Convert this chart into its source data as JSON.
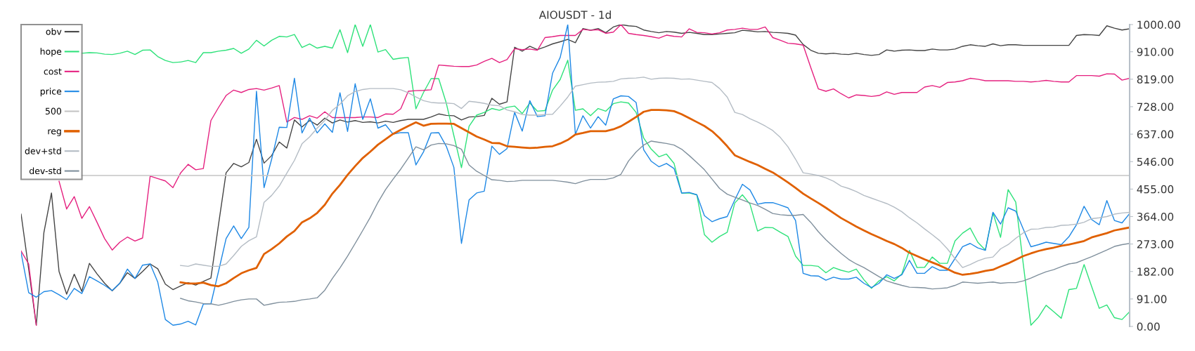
{
  "chart_data": {
    "type": "line",
    "title": "AIOUSDT - 1d",
    "categories": [
      null,
      null,
      null,
      null,
      null,
      null,
      null,
      null,
      null,
      null,
      null,
      null,
      null,
      null,
      null,
      null,
      null,
      null,
      null,
      null,
      null,
      null,
      null,
      null,
      null,
      null,
      null,
      null,
      null,
      null,
      null,
      null,
      null,
      null,
      null,
      null,
      null,
      null,
      null,
      null,
      null,
      null,
      null,
      null,
      null,
      null,
      null,
      null,
      null,
      null,
      null,
      null,
      null,
      null,
      null,
      null,
      null,
      null,
      null,
      null,
      null,
      null,
      null,
      null,
      null,
      null,
      null,
      null,
      null,
      null,
      null,
      null,
      null,
      null,
      null,
      null,
      null,
      null,
      null,
      null,
      null,
      null,
      null,
      null,
      null,
      null,
      null,
      null,
      null,
      null,
      null,
      null,
      null,
      null,
      null,
      null,
      null,
      null,
      null,
      null,
      null,
      null,
      null,
      null,
      null,
      null,
      null,
      null,
      null,
      null,
      null,
      null,
      null,
      null,
      null,
      null,
      null,
      null,
      null,
      null,
      null,
      null,
      null,
      null,
      null,
      null,
      null,
      null,
      null,
      null,
      null,
      null,
      null,
      null,
      null,
      null,
      null,
      null,
      null,
      null,
      null,
      null,
      null,
      null,
      null,
      null,
      null
    ],
    "series": [
      {
        "name": "obv",
        "color": "#444444",
        "values": [
          372,
          190,
          4,
          310,
          442,
          182,
          107,
          173,
          116,
          209,
          174,
          143,
          118,
          143,
          178,
          159,
          182,
          207,
          191,
          140,
          122,
          134,
          145,
          137,
          149,
          160,
          337,
          509,
          540,
          529,
          543,
          620,
          541,
          566,
          611,
          591,
          684,
          661,
          682,
          667,
          690,
          674,
          684,
          677,
          682,
          676,
          678,
          674,
          680,
          676,
          682,
          686,
          686,
          686,
          694,
          704,
          699,
          698,
          684,
          694,
          695,
          699,
          756,
          736,
          744,
          925,
          912,
          928,
          917,
          926,
          936,
          943,
          951,
          940,
          987,
          981,
          987,
          973,
          992,
          1000,
          996,
          994,
          982,
          977,
          973,
          977,
          975,
          971,
          974,
          971,
          967,
          967,
          969,
          971,
          973,
          981,
          979,
          976,
          977,
          974,
          973,
          971,
          965,
          934,
          915,
          905,
          903,
          905,
          902,
          901,
          905,
          901,
          898,
          901,
          916,
          912,
          915,
          916,
          914,
          914,
          919,
          916,
          916,
          919,
          928,
          933,
          930,
          928,
          936,
          930,
          933,
          933,
          931,
          931,
          931,
          931,
          931,
          931,
          931,
          964,
          967,
          966,
          964,
          996,
          988,
          982,
          986
        ]
      },
      {
        "name": "hope",
        "color": "#2ee27a",
        "values": [
          null,
          null,
          null,
          null,
          null,
          null,
          null,
          null,
          905,
          907,
          906,
          902,
          901,
          905,
          912,
          901,
          915,
          916,
          894,
          881,
          874,
          876,
          881,
          874,
          907,
          907,
          912,
          915,
          921,
          905,
          919,
          948,
          929,
          948,
          961,
          959,
          967,
          924,
          936,
          922,
          928,
          922,
          983,
          907,
          1000,
          928,
          1000,
          909,
          917,
          885,
          889,
          891,
          721,
          775,
          821,
          821,
          740,
          632,
          526,
          663,
          700,
          709,
          722,
          716,
          726,
          730,
          705,
          740,
          713,
          715,
          783,
          818,
          882,
          716,
          721,
          698,
          722,
          713,
          738,
          744,
          740,
          709,
          624,
          587,
          562,
          571,
          540,
          442,
          442,
          436,
          304,
          279,
          298,
          312,
          409,
          436,
          405,
          316,
          328,
          327,
          312,
          298,
          233,
          202,
          202,
          199,
          178,
          195,
          186,
          180,
          190,
          155,
          126,
          151,
          165,
          151,
          174,
          252,
          195,
          196,
          230,
          209,
          209,
          283,
          309,
          326,
          279,
          253,
          376,
          295,
          453,
          412,
          205,
          4,
          31,
          70,
          49,
          27,
          122,
          126,
          205,
          132,
          60,
          71,
          29,
          23,
          49
        ]
      },
      {
        "name": "cost",
        "color": "#e5207f",
        "values": [
          250,
          207,
          4,
          null,
          null,
          481,
          389,
          430,
          358,
          397,
          345,
          291,
          253,
          279,
          296,
          283,
          293,
          498,
          490,
          482,
          460,
          508,
          537,
          519,
          523,
          682,
          725,
          765,
          783,
          775,
          785,
          788,
          783,
          790,
          798,
          677,
          692,
          686,
          698,
          690,
          711,
          692,
          692,
          692,
          692,
          694,
          694,
          692,
          704,
          703,
          721,
          779,
          781,
          782,
          784,
          866,
          864,
          862,
          861,
          861,
          866,
          878,
          888,
          874,
          884,
          920,
          917,
          919,
          915,
          957,
          960,
          964,
          964,
          964,
          984,
          981,
          983,
          971,
          975,
          1000,
          971,
          967,
          964,
          960,
          955,
          965,
          961,
          959,
          986,
          974,
          973,
          969,
          973,
          982,
          984,
          988,
          984,
          984,
          992,
          957,
          948,
          938,
          936,
          932,
          858,
          787,
          779,
          787,
          771,
          757,
          767,
          765,
          762,
          765,
          777,
          769,
          775,
          775,
          775,
          793,
          798,
          792,
          808,
          810,
          814,
          822,
          819,
          814,
          814,
          814,
          814,
          812,
          812,
          810,
          812,
          815,
          812,
          810,
          810,
          831,
          831,
          831,
          829,
          837,
          836,
          816,
          822
        ]
      },
      {
        "name": "price",
        "color": "#1e88e5",
        "values": [
          244,
          112,
          97,
          115,
          119,
          105,
          89,
          126,
          109,
          165,
          151,
          136,
          119,
          143,
          190,
          159,
          203,
          207,
          147,
          23,
          4,
          8,
          17,
          5,
          74,
          75,
          182,
          291,
          333,
          291,
          328,
          779,
          460,
          554,
          660,
          659,
          822,
          641,
          690,
          641,
          671,
          643,
          774,
          646,
          804,
          686,
          754,
          657,
          668,
          637,
          642,
          642,
          535,
          578,
          641,
          642,
          597,
          527,
          275,
          419,
          442,
          448,
          597,
          570,
          589,
          709,
          647,
          748,
          695,
          698,
          839,
          891,
          1000,
          636,
          698,
          657,
          695,
          667,
          754,
          764,
          762,
          742,
          585,
          547,
          529,
          540,
          523,
          442,
          444,
          436,
          367,
          347,
          357,
          364,
          419,
          471,
          452,
          405,
          410,
          410,
          402,
          393,
          351,
          176,
          168,
          167,
          153,
          163,
          157,
          157,
          163,
          143,
          129,
          143,
          171,
          159,
          171,
          219,
          176,
          176,
          198,
          186,
          186,
          225,
          264,
          275,
          260,
          252,
          378,
          339,
          393,
          382,
          322,
          264,
          271,
          279,
          275,
          271,
          297,
          337,
          398,
          354,
          337,
          417,
          351,
          343,
          374
        ]
      },
      {
        "name": "500",
        "color": "#c4c4c4",
        "values": [
          null,
          null,
          null,
          null,
          null,
          null,
          null,
          null,
          500,
          500,
          500,
          500,
          500,
          500,
          500,
          500,
          500,
          500,
          500,
          500,
          500,
          500,
          500,
          500,
          500,
          500,
          500,
          500,
          500,
          500,
          500,
          500,
          500,
          500,
          500,
          500,
          500,
          500,
          500,
          500,
          500,
          500,
          500,
          500,
          500,
          500,
          500,
          500,
          500,
          500,
          500,
          500,
          500,
          500,
          500,
          500,
          500,
          500,
          500,
          500,
          500,
          500,
          500,
          500,
          500,
          500,
          500,
          500,
          500,
          500,
          500,
          500,
          500,
          500,
          500,
          500,
          500,
          500,
          500,
          500,
          500,
          500,
          500,
          500,
          500,
          500,
          500,
          500,
          500,
          500,
          500,
          500,
          500,
          500,
          500,
          500,
          500,
          500,
          500,
          500,
          500,
          500,
          500,
          500,
          500,
          500,
          500,
          500,
          500,
          500,
          500,
          500,
          500,
          500,
          500,
          500,
          500,
          500,
          500,
          500,
          500,
          500,
          500,
          500,
          500,
          500,
          500,
          500,
          500,
          500,
          500,
          500,
          500,
          500,
          500,
          500,
          500,
          500,
          500,
          500,
          500,
          500,
          500,
          500,
          500,
          500,
          500
        ]
      },
      {
        "name": "reg",
        "color": "#e06000",
        "values": [
          null,
          null,
          null,
          null,
          null,
          null,
          null,
          null,
          null,
          null,
          null,
          null,
          null,
          null,
          null,
          null,
          null,
          null,
          null,
          null,
          null,
          146,
          142,
          142,
          145,
          137,
          133,
          143,
          160,
          176,
          186,
          194,
          240,
          256,
          275,
          298,
          316,
          345,
          358,
          376,
          403,
          440,
          469,
          502,
          531,
          558,
          579,
          602,
          620,
          638,
          651,
          664,
          676,
          665,
          671,
          672,
          672,
          671,
          657,
          643,
          629,
          619,
          608,
          607,
          597,
          595,
          593,
          591,
          592,
          595,
          597,
          606,
          618,
          636,
          641,
          647,
          647,
          647,
          653,
          663,
          678,
          694,
          711,
          717,
          717,
          716,
          713,
          703,
          690,
          677,
          664,
          647,
          624,
          597,
          567,
          556,
          545,
          535,
          522,
          510,
          494,
          477,
          459,
          440,
          424,
          409,
          393,
          376,
          359,
          345,
          331,
          318,
          306,
          295,
          283,
          273,
          260,
          244,
          233,
          222,
          212,
          202,
          190,
          178,
          171,
          174,
          178,
          184,
          188,
          199,
          209,
          221,
          233,
          242,
          250,
          256,
          261,
          267,
          271,
          277,
          283,
          295,
          302,
          309,
          318,
          323,
          328
        ]
      },
      {
        "name": "dev+std",
        "color": "#b4bcc4",
        "values": [
          null,
          null,
          null,
          null,
          null,
          null,
          null,
          null,
          null,
          null,
          null,
          null,
          null,
          null,
          null,
          null,
          null,
          null,
          null,
          null,
          null,
          202,
          199,
          207,
          203,
          199,
          199,
          207,
          235,
          265,
          284,
          297,
          411,
          434,
          465,
          508,
          550,
          605,
          628,
          657,
          682,
          716,
          736,
          764,
          778,
          785,
          788,
          788,
          788,
          788,
          784,
          774,
          760,
          748,
          742,
          740,
          740,
          738,
          722,
          746,
          743,
          739,
          733,
          731,
          717,
          711,
          702,
          700,
          700,
          702,
          703,
          730,
          760,
          796,
          801,
          806,
          809,
          810,
          812,
          820,
          822,
          823,
          826,
          819,
          822,
          823,
          822,
          819,
          820,
          816,
          812,
          808,
          788,
          760,
          709,
          702,
          688,
          677,
          664,
          649,
          626,
          595,
          554,
          509,
          505,
          500,
          492,
          481,
          465,
          457,
          447,
          434,
          425,
          416,
          407,
          395,
          380,
          360,
          343,
          323,
          304,
          284,
          257,
          225,
          195,
          205,
          217,
          226,
          230,
          257,
          271,
          292,
          310,
          322,
          323,
          328,
          329,
          335,
          336,
          339,
          345,
          357,
          360,
          364,
          372,
          376,
          378
        ]
      },
      {
        "name": "dev-std",
        "color": "#7f8f9c",
        "values": [
          null,
          null,
          null,
          null,
          null,
          null,
          null,
          null,
          null,
          null,
          null,
          null,
          null,
          null,
          null,
          null,
          null,
          null,
          null,
          null,
          null,
          93,
          85,
          81,
          76,
          75,
          70,
          76,
          83,
          88,
          91,
          91,
          70,
          75,
          80,
          81,
          83,
          88,
          91,
          95,
          120,
          159,
          194,
          233,
          275,
          318,
          362,
          411,
          453,
          488,
          521,
          558,
          595,
          585,
          601,
          606,
          605,
          599,
          587,
          535,
          514,
          500,
          486,
          484,
          480,
          481,
          484,
          484,
          484,
          484,
          484,
          481,
          478,
          473,
          481,
          487,
          487,
          487,
          492,
          504,
          548,
          578,
          601,
          614,
          610,
          606,
          601,
          587,
          566,
          543,
          519,
          488,
          457,
          438,
          428,
          419,
          409,
          401,
          388,
          374,
          370,
          368,
          368,
          371,
          345,
          314,
          287,
          264,
          242,
          222,
          207,
          195,
          180,
          165,
          151,
          143,
          136,
          130,
          129,
          128,
          124,
          126,
          128,
          136,
          147,
          145,
          143,
          145,
          147,
          143,
          145,
          145,
          151,
          160,
          171,
          181,
          188,
          198,
          207,
          211,
          221,
          231,
          242,
          253,
          265,
          271,
          275
        ]
      }
    ],
    "ylim": [
      0,
      1000
    ],
    "yticks": [
      {
        "value": 0,
        "label": "0.00"
      },
      {
        "value": 91,
        "label": "91.00"
      },
      {
        "value": 182,
        "label": "182.00"
      },
      {
        "value": 273,
        "label": "273.00"
      },
      {
        "value": 364,
        "label": "364.00"
      },
      {
        "value": 455,
        "label": "455.00"
      },
      {
        "value": 546,
        "label": "546.00"
      },
      {
        "value": 637,
        "label": "637.00"
      },
      {
        "value": 728,
        "label": "728.00"
      },
      {
        "value": 819,
        "label": "819.00"
      },
      {
        "value": 910,
        "label": "910.00"
      },
      {
        "value": 1000,
        "label": "1000.00"
      }
    ],
    "tick_labels": "y",
    "legend": "top left",
    "grid": false
  }
}
